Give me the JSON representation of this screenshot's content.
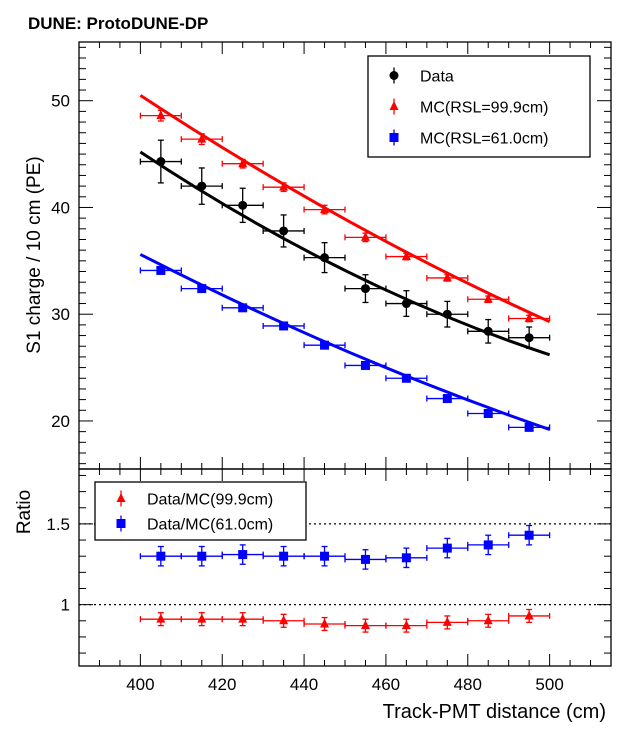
{
  "chart_data": [
    {
      "type": "scatter",
      "title": "DUNE: ProtoDUNE-DP",
      "ylabel": "S1 charge / 10 cm (PE)",
      "xlim": [
        385,
        515
      ],
      "ylim": [
        15.5,
        55.5
      ],
      "yticks": [
        20,
        30,
        40,
        50
      ],
      "legend_position": "top-right",
      "series": [
        {
          "name": "Data",
          "color": "#000000",
          "marker": "circle",
          "x": [
            405,
            415,
            425,
            435,
            445,
            455,
            465,
            475,
            485,
            495
          ],
          "y": [
            44.3,
            42.0,
            40.2,
            37.8,
            35.3,
            32.4,
            31.0,
            30.0,
            28.4,
            27.8
          ],
          "xerr": 5,
          "yerr": [
            2.0,
            1.7,
            1.6,
            1.5,
            1.4,
            1.3,
            1.2,
            1.2,
            1.1,
            1.0
          ],
          "fit": {
            "x": [
              400,
              500
            ],
            "y": [
              45.2,
              26.2
            ],
            "curvature": 1.6
          }
        },
        {
          "name": "MC(RSL=99.9cm)",
          "color": "#ff0000",
          "marker": "triangle",
          "x": [
            405,
            415,
            425,
            435,
            445,
            455,
            465,
            475,
            485,
            495
          ],
          "y": [
            48.6,
            46.4,
            44.1,
            41.9,
            39.8,
            37.2,
            35.4,
            33.4,
            31.4,
            29.6
          ],
          "xerr": 5,
          "yerr": [
            0.5,
            0.5,
            0.4,
            0.4,
            0.4,
            0.4,
            0.3,
            0.3,
            0.3,
            0.3
          ],
          "fit": {
            "x": [
              400,
              500
            ],
            "y": [
              50.5,
              29.3
            ],
            "curvature": 1.0
          }
        },
        {
          "name": "MC(RSL=61.0cm)",
          "color": "#0000ff",
          "marker": "square",
          "x": [
            405,
            415,
            425,
            435,
            445,
            455,
            465,
            475,
            485,
            495
          ],
          "y": [
            34.1,
            32.4,
            30.6,
            28.9,
            27.1,
            25.2,
            24.0,
            22.1,
            20.7,
            19.4
          ],
          "xerr": 5,
          "yerr": [
            0.3,
            0.3,
            0.3,
            0.3,
            0.3,
            0.3,
            0.3,
            0.2,
            0.2,
            0.2
          ],
          "fit": {
            "x": [
              400,
              500
            ],
            "y": [
              35.6,
              19.2
            ],
            "curvature": 0.8
          }
        }
      ]
    },
    {
      "type": "scatter",
      "xlabel": "Track-PMT distance (cm)",
      "ylabel": "Ratio",
      "xlim": [
        385,
        515
      ],
      "ylim": [
        0.62,
        1.84
      ],
      "xticks": [
        400,
        420,
        440,
        460,
        480,
        500
      ],
      "yticks": [
        1,
        1.5
      ],
      "ytick_labels": [
        "1",
        "1.5"
      ],
      "reference_lines": [
        1,
        1.5
      ],
      "legend_position": "top-left",
      "series": [
        {
          "name": "Data/MC(99.9cm)",
          "color": "#ff0000",
          "marker": "triangle",
          "x": [
            405,
            415,
            425,
            435,
            445,
            455,
            465,
            475,
            485,
            495
          ],
          "y": [
            0.91,
            0.91,
            0.91,
            0.9,
            0.88,
            0.87,
            0.87,
            0.89,
            0.9,
            0.93
          ],
          "xerr": 5,
          "yerr": 0.04
        },
        {
          "name": "Data/MC(61.0cm)",
          "color": "#0000ff",
          "marker": "square",
          "x": [
            405,
            415,
            425,
            435,
            445,
            455,
            465,
            475,
            485,
            495
          ],
          "y": [
            1.3,
            1.3,
            1.31,
            1.3,
            1.3,
            1.28,
            1.29,
            1.35,
            1.37,
            1.43
          ],
          "xerr": 5,
          "yerr": 0.06
        }
      ]
    }
  ]
}
